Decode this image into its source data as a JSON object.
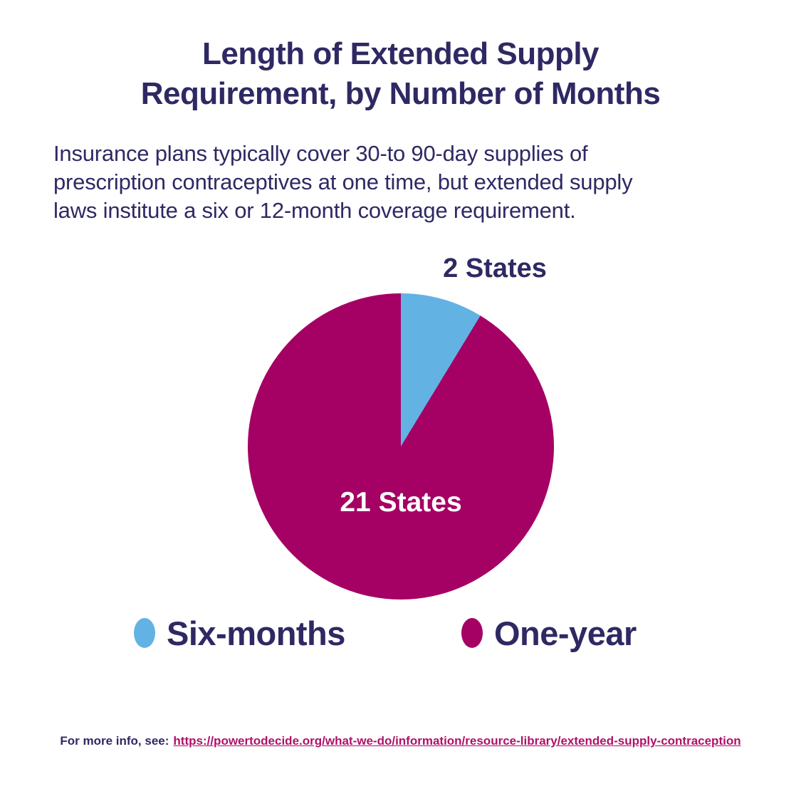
{
  "title": {
    "line1": "Length of Extended Supply",
    "line2": "Requirement, by Number of Months"
  },
  "subtitle": {
    "line1": "Insurance plans typically cover 30-to 90-day supplies of",
    "line2": "prescription contraceptives at one time, but extended supply",
    "line3": "laws institute a six or 12-month coverage requirement."
  },
  "chart_data": {
    "type": "pie",
    "categories": [
      "Six-months",
      "One-year"
    ],
    "values": [
      2,
      21
    ],
    "slice_labels": [
      "2 States",
      "21 States"
    ],
    "colors": [
      "#62B2E4",
      "#A50064"
    ],
    "title": "Length of Extended Supply Requirement, by Number of Months",
    "start_angle_deg": 0,
    "direction": "clockwise",
    "legend_position": "bottom"
  },
  "legend": {
    "items": [
      {
        "label": "Six-months",
        "color": "#62B2E4"
      },
      {
        "label": "One-year",
        "color": "#A50064"
      }
    ]
  },
  "footer": {
    "prefix": "For more info, see:",
    "link": "https://powertodecide.org/what-we-do/information/resource-library/extended-supply-contraception"
  },
  "colors": {
    "navy": "#2E2963",
    "blue": "#62B2E4",
    "magenta": "#A50064",
    "link_magenta": "#B01069",
    "background": "#FFFFFF"
  }
}
